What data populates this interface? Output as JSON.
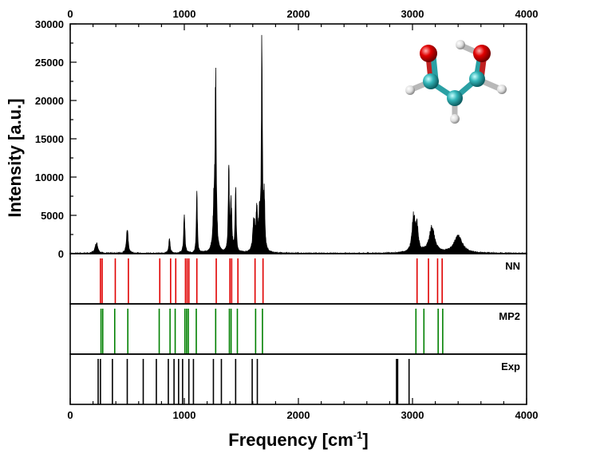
{
  "chart_data": {
    "type": "line",
    "xlabel": "Frequency [cm",
    "xlabel_sup": "-1",
    "xlabel_close": "]",
    "ylabel": "Intensity [a.u.]",
    "xlim": [
      0,
      4000
    ],
    "ylim": [
      0,
      30000
    ],
    "x_ticks": [
      "0",
      "1000",
      "2000",
      "3000",
      "4000"
    ],
    "y_ticks": [
      "0",
      "5000",
      "10000",
      "15000",
      "20000",
      "25000",
      "30000"
    ],
    "spectrum_peaks": [
      {
        "x": 230,
        "height": 1400,
        "width": 14
      },
      {
        "x": 500,
        "height": 3100,
        "width": 9
      },
      {
        "x": 870,
        "height": 1900,
        "width": 7
      },
      {
        "x": 1000,
        "height": 5200,
        "width": 6
      },
      {
        "x": 1110,
        "height": 8100,
        "width": 5
      },
      {
        "x": 1275,
        "height": 21400,
        "width": 6
      },
      {
        "x": 1260,
        "height": 5500,
        "width": 10
      },
      {
        "x": 1390,
        "height": 10800,
        "width": 5
      },
      {
        "x": 1410,
        "height": 6000,
        "width": 8
      },
      {
        "x": 1450,
        "height": 9000,
        "width": 5
      },
      {
        "x": 1610,
        "height": 4200,
        "width": 10
      },
      {
        "x": 1635,
        "height": 4800,
        "width": 8
      },
      {
        "x": 1660,
        "height": 4100,
        "width": 8
      },
      {
        "x": 1680,
        "height": 28400,
        "width": 5
      },
      {
        "x": 1700,
        "height": 6800,
        "width": 6
      },
      {
        "x": 3010,
        "height": 4600,
        "width": 16
      },
      {
        "x": 3040,
        "height": 2900,
        "width": 12
      },
      {
        "x": 3170,
        "height": 3300,
        "width": 28
      },
      {
        "x": 3400,
        "height": 2200,
        "width": 45
      }
    ],
    "panels": [
      {
        "name": "NN",
        "color": "#e00000",
        "x": [
          265,
          280,
          395,
          510,
          785,
          880,
          925,
          1010,
          1025,
          1040,
          1110,
          1280,
          1400,
          1415,
          1470,
          1620,
          1690,
          3040,
          3140,
          3220,
          3260
        ]
      },
      {
        "name": "MP2",
        "color": "#008000",
        "x": [
          270,
          285,
          390,
          505,
          780,
          875,
          920,
          1005,
          1020,
          1035,
          1105,
          1275,
          1395,
          1410,
          1465,
          1625,
          1685,
          3030,
          3100,
          3225,
          3265
        ]
      },
      {
        "name": "Exp",
        "color": "#000000",
        "x": [
          245,
          265,
          370,
          500,
          640,
          755,
          860,
          910,
          950,
          985,
          1040,
          1080,
          1255,
          1325,
          1450,
          1595,
          1640,
          2860,
          2870,
          2970
        ]
      }
    ],
    "grid": false,
    "legend": "none"
  }
}
